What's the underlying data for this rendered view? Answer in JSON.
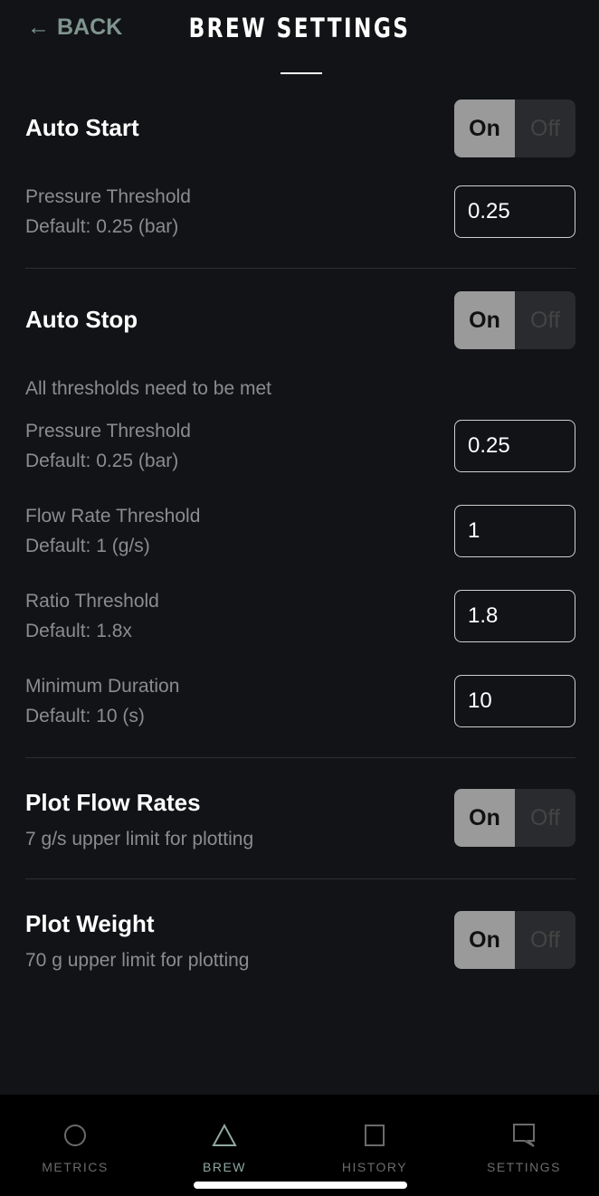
{
  "header": {
    "back_label": "BACK",
    "title": "BREW SETTINGS"
  },
  "auto_start": {
    "title": "Auto Start",
    "toggle": {
      "on": "On",
      "off": "Off",
      "value": "On"
    },
    "pressure": {
      "label": "Pressure Threshold",
      "default": "Default: 0.25 (bar)",
      "value": "0.25"
    }
  },
  "auto_stop": {
    "title": "Auto Stop",
    "toggle": {
      "on": "On",
      "off": "Off",
      "value": "On"
    },
    "note": "All thresholds need to be met",
    "pressure": {
      "label": "Pressure Threshold",
      "default": "Default: 0.25 (bar)",
      "value": "0.25"
    },
    "flow": {
      "label": "Flow Rate Threshold",
      "default": "Default: 1 (g/s)",
      "value": "1"
    },
    "ratio": {
      "label": "Ratio Threshold",
      "default": "Default: 1.8x",
      "value": "1.8"
    },
    "duration": {
      "label": "Minimum Duration",
      "default": "Default: 10 (s)",
      "value": "10"
    }
  },
  "plot_flow": {
    "title": "Plot Flow Rates",
    "subtitle": "7 g/s upper limit for plotting",
    "toggle": {
      "on": "On",
      "off": "Off",
      "value": "On"
    }
  },
  "plot_weight": {
    "title": "Plot Weight",
    "subtitle": "70 g upper limit for plotting",
    "toggle": {
      "on": "On",
      "off": "Off",
      "value": "On"
    }
  },
  "nav": {
    "active": "BREW",
    "items": [
      {
        "label": "METRICS",
        "icon": "circle-icon"
      },
      {
        "label": "BREW",
        "icon": "triangle-icon"
      },
      {
        "label": "HISTORY",
        "icon": "square-icon"
      },
      {
        "label": "SETTINGS",
        "icon": "chat-bubble-icon"
      }
    ]
  },
  "colors": {
    "accent": "#8fa8a4",
    "background": "#121316"
  }
}
